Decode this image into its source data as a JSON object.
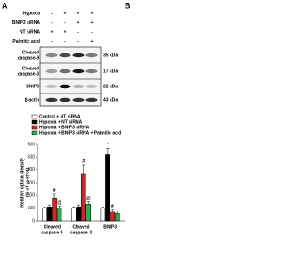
{
  "panel_labels": [
    "A",
    "B"
  ],
  "blot": {
    "conditions": [
      {
        "label": "Hypoxia",
        "signs": [
          "-",
          "+",
          "+",
          "+"
        ]
      },
      {
        "label": "BNIP3 siRNA",
        "signs": [
          "-",
          "-",
          "+",
          "+"
        ]
      },
      {
        "label": "NT siRNA",
        "signs": [
          "+",
          "+",
          "-",
          "-"
        ]
      },
      {
        "label": "Palmitic acid",
        "signs": [
          "-",
          "-",
          "-",
          "+"
        ]
      }
    ],
    "rows": [
      {
        "label": [
          "Cleaved",
          "caspase-9"
        ],
        "size": "35 kDa"
      },
      {
        "label": [
          "Cleaved",
          "caspase-3"
        ],
        "size": "17 kDa"
      },
      {
        "label": [
          "BNIP3"
        ],
        "size": "22 kDa"
      },
      {
        "label": [
          "β-actin"
        ],
        "size": "43 kDa"
      }
    ]
  },
  "chart_data": {
    "type": "bar",
    "ylabel": [
      "Relative optical density",
      "(% of control)"
    ],
    "categories": [
      [
        "Cleaved",
        "caspase-9"
      ],
      [
        "Cleaved",
        "caspase-3"
      ],
      [
        "BNIP3"
      ]
    ],
    "series": [
      {
        "name": "Control + NT siRNA",
        "color": "#ffffff",
        "values": [
          100,
          100,
          100
        ],
        "errors": [
          10,
          10,
          10
        ],
        "markers": [
          null,
          null,
          null
        ]
      },
      {
        "name": "Hypoxia + NT siRNA",
        "color": "#000000",
        "values": [
          110,
          110,
          520
        ],
        "errors": [
          15,
          15,
          50
        ],
        "markers": [
          null,
          null,
          "*"
        ]
      },
      {
        "name": "Hypoxia + BNIP3 siRNA",
        "color": "#e02020",
        "values": [
          180,
          370,
          70
        ],
        "errors": [
          30,
          70,
          15
        ],
        "markers": [
          "#",
          "#",
          "#"
        ]
      },
      {
        "name": "Hypoxia + BNIP3 siRNA + Palmitic acid",
        "color": "#22b14c",
        "values": [
          100,
          130,
          60
        ],
        "errors": [
          15,
          20,
          10
        ],
        "markers": [
          "@",
          "@",
          null
        ]
      }
    ],
    "ylim": [
      0,
      600
    ],
    "yticks": [
      0,
      100,
      200,
      300,
      400,
      500,
      600
    ]
  }
}
